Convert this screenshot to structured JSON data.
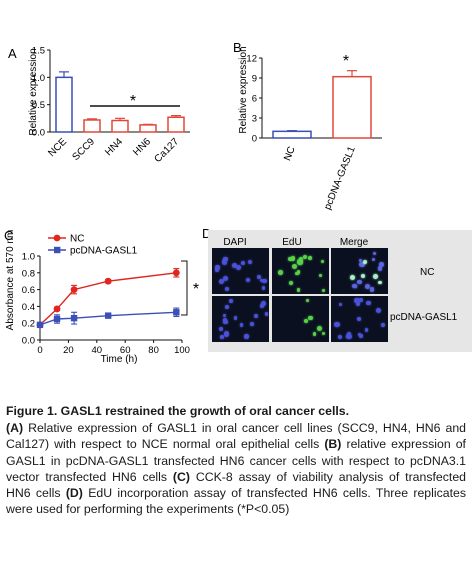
{
  "panels": {
    "A": {
      "letter": "A",
      "ylabel": "Relative expression",
      "significance": "*",
      "chart_data": {
        "type": "bar",
        "categories": [
          "NCE",
          "SCC9",
          "HN4",
          "HN6",
          "Ca127"
        ],
        "values": [
          1.0,
          0.22,
          0.21,
          0.13,
          0.27
        ],
        "errors": [
          0.1,
          0.02,
          0.04,
          0.01,
          0.03
        ],
        "ylim": [
          0,
          1.5
        ],
        "yticks": [
          "0.0",
          "0.5",
          "1.0",
          "1.5"
        ],
        "colors": [
          "#3b4fb8",
          "#e0483a",
          "#e0483a",
          "#e0483a",
          "#e0483a"
        ]
      }
    },
    "B": {
      "letter": "B",
      "ylabel": "Relative expression",
      "significance": "*",
      "chart_data": {
        "type": "bar",
        "categories": [
          "NC",
          "pcDNA-GASL1"
        ],
        "values": [
          1.0,
          9.2
        ],
        "errors": [
          0.1,
          0.9
        ],
        "ylim": [
          0,
          12
        ],
        "yticks": [
          "0",
          "3",
          "6",
          "9",
          "12"
        ],
        "colors": [
          "#3b4fb8",
          "#e0483a"
        ]
      }
    },
    "C": {
      "letter": "C",
      "ylabel": "Absorbance at 570 nm",
      "xlabel": "Time (h)",
      "significance": "*",
      "chart_data": {
        "type": "line",
        "x": [
          0,
          12,
          24,
          48,
          96
        ],
        "series": [
          {
            "name": "NC",
            "values": [
              0.18,
              0.37,
              0.6,
              0.7,
              0.8
            ],
            "errors": [
              0.02,
              0.02,
              0.05,
              0.02,
              0.05
            ],
            "color": "#e0261e",
            "marker": "circle"
          },
          {
            "name": "pcDNA-GASL1",
            "values": [
              0.18,
              0.25,
              0.26,
              0.29,
              0.33
            ],
            "errors": [
              0.02,
              0.05,
              0.07,
              0.02,
              0.05
            ],
            "color": "#3b4fb8",
            "marker": "square"
          }
        ],
        "xlim": [
          0,
          100
        ],
        "ylim": [
          0,
          1.0
        ],
        "xticks": [
          "0",
          "20",
          "40",
          "60",
          "80",
          "100"
        ],
        "yticks": [
          "0.0",
          "0.2",
          "0.4",
          "0.6",
          "0.8",
          "1.0"
        ]
      }
    },
    "D": {
      "letter": "D",
      "columns": [
        "DAPI",
        "EdU",
        "Merge"
      ],
      "rows": [
        "NC",
        "pcDNA-GASL1"
      ]
    }
  },
  "caption": {
    "title": "Figure 1. GASL1 restrained the growth of oral cancer cells.",
    "body": [
      {
        "b": "(A)",
        "t": " Relative expression of GASL1 in oral cancer cell lines (SCC9, HN4, HN6 and Cal127) with respect to NCE normal oral epithelial cells "
      },
      {
        "b": "(B)",
        "t": " relative expression of GASL1 in pcDNA-GASL1 transfected HN6 cancer cells with respect to pcDNA3.1 vector transfected HN6 cells "
      },
      {
        "b": "(C)",
        "t": " CCK-8 assay of viability analysis of transfected HN6 cells "
      },
      {
        "b": "(D)",
        "t": " EdU incorporation assay of transfected HN6 cells. Three replicates were used for performing the experiments (*P<0.05)"
      }
    ]
  }
}
